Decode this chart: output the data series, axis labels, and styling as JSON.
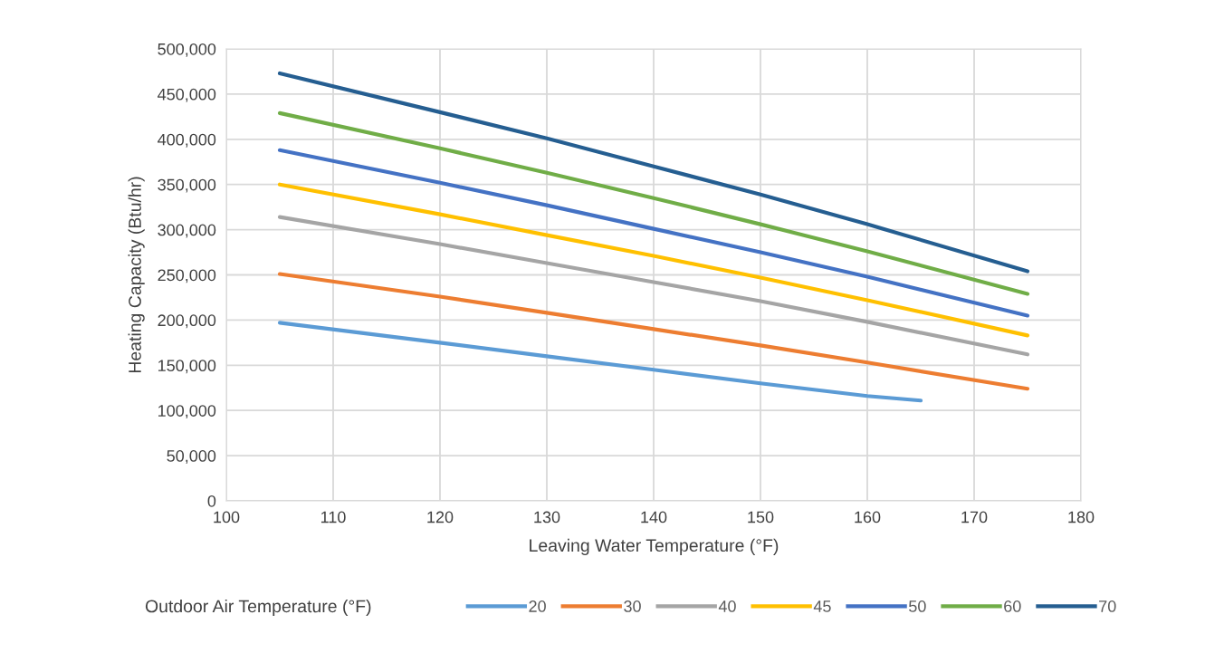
{
  "chart_data": {
    "type": "line",
    "xlabel": "Leaving Water Temperature (°F)",
    "ylabel": "Heating Capacity (Btu/hr)",
    "legend_title": "Outdoor Air Temperature (°F)",
    "legend": "bottom",
    "grid": true,
    "marker": "none",
    "line_style": "solid",
    "xlim": [
      100,
      180
    ],
    "xticks": [
      100,
      110,
      120,
      130,
      140,
      150,
      160,
      170,
      180
    ],
    "ylim": [
      0,
      500000
    ],
    "yticks": [
      0,
      {
        "value": 50000,
        "label": "50,000"
      },
      {
        "value": 100000,
        "label": "100,000"
      },
      {
        "value": 150000,
        "label": "150,000"
      },
      {
        "value": 200000,
        "label": "200,000"
      },
      {
        "value": 250000,
        "label": "250,000"
      },
      {
        "value": 300000,
        "label": "300,000"
      },
      {
        "value": 350000,
        "label": "350,000"
      },
      {
        "value": 400000,
        "label": "400,000"
      },
      {
        "value": 450000,
        "label": "450,000"
      },
      {
        "value": 500000,
        "label": "500,000"
      }
    ],
    "series": [
      {
        "name": "20",
        "color": "#5b9bd5",
        "x": [
          105,
          120,
          130,
          140,
          150,
          160,
          165
        ],
        "values": [
          197000,
          175000,
          160000,
          145000,
          130000,
          116000,
          111000
        ]
      },
      {
        "name": "30",
        "color": "#ed7d31",
        "x": [
          105,
          120,
          130,
          140,
          150,
          160,
          175
        ],
        "values": [
          251000,
          226000,
          208000,
          190000,
          172000,
          153000,
          124000
        ]
      },
      {
        "name": "40",
        "color": "#a5a5a5",
        "x": [
          105,
          120,
          130,
          140,
          150,
          160,
          175
        ],
        "values": [
          314000,
          284000,
          263000,
          242000,
          221000,
          198000,
          162000
        ]
      },
      {
        "name": "45",
        "color": "#ffc000",
        "x": [
          105,
          120,
          130,
          140,
          150,
          160,
          175
        ],
        "values": [
          350000,
          317000,
          294000,
          271000,
          247000,
          222000,
          183000
        ]
      },
      {
        "name": "50",
        "color": "#4472c4",
        "x": [
          105,
          120,
          130,
          140,
          150,
          160,
          175
        ],
        "values": [
          388000,
          352000,
          327000,
          301000,
          275000,
          248000,
          205000
        ]
      },
      {
        "name": "60",
        "color": "#70ad47",
        "x": [
          105,
          120,
          130,
          140,
          150,
          160,
          175
        ],
        "values": [
          429000,
          390000,
          363000,
          335000,
          306000,
          276000,
          229000
        ]
      },
      {
        "name": "70",
        "color": "#255e91",
        "x": [
          105,
          120,
          130,
          140,
          150,
          160,
          175
        ],
        "values": [
          473000,
          430000,
          401000,
          370000,
          339000,
          306000,
          254000
        ]
      }
    ]
  }
}
